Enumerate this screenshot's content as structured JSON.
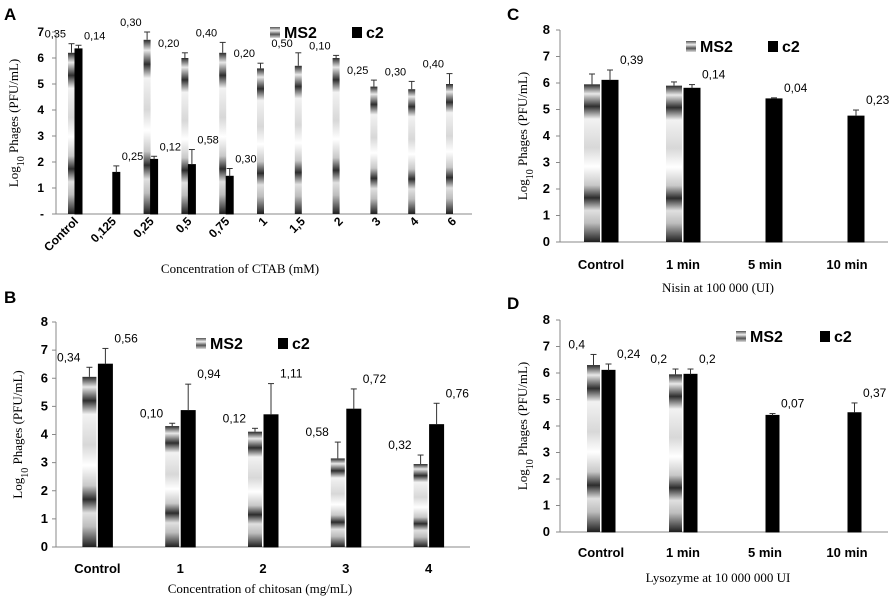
{
  "chart_data": [
    {
      "panel": "A",
      "type": "bar",
      "xlabel": "Concentration of CTAB (mM)",
      "ylabel": "Log10 Phages (PFU/mL)",
      "ylim": [
        0,
        7
      ],
      "yticks": [
        "-",
        "1",
        "2",
        "3",
        "4",
        "5",
        "6",
        "7"
      ],
      "categories": [
        "Control",
        "0,125",
        "0,25",
        "0,5",
        "0,75",
        "1",
        "1,5",
        "2",
        "3",
        "4",
        "6"
      ],
      "series": [
        {
          "name": "MS2",
          "values": [
            6.2,
            null,
            6.7,
            6.0,
            6.2,
            5.6,
            5.7,
            6.0,
            4.9,
            4.8,
            5.0
          ],
          "errors": [
            0.35,
            null,
            0.3,
            0.2,
            0.4,
            0.2,
            0.5,
            0.1,
            0.25,
            0.3,
            0.4
          ],
          "labels": [
            "0,35",
            null,
            "0,30",
            "0,20",
            "0,40",
            "0,20",
            "0,50",
            "0,10",
            "0,25",
            "0,30",
            "0,40"
          ]
        },
        {
          "name": "c2",
          "values": [
            6.35,
            1.6,
            2.1,
            1.9,
            1.45,
            null,
            null,
            null,
            null,
            null,
            null
          ],
          "errors": [
            0.14,
            0.25,
            0.12,
            0.58,
            0.3,
            null,
            null,
            null,
            null,
            null,
            null
          ],
          "labels": [
            "0,14",
            "0,25",
            "0,12",
            "0,58",
            "0,30",
            null,
            null,
            null,
            null,
            null,
            null
          ]
        }
      ]
    },
    {
      "panel": "B",
      "type": "bar",
      "xlabel": "Concentration of chitosan (mg/mL)",
      "ylabel": "Log10 Phages (PFU/mL)",
      "ylim": [
        0,
        8
      ],
      "yticks": [
        "0",
        "1",
        "2",
        "3",
        "4",
        "5",
        "6",
        "7",
        "8"
      ],
      "categories": [
        "Control",
        "1",
        "2",
        "3",
        "4"
      ],
      "series": [
        {
          "name": "MS2",
          "values": [
            6.05,
            4.3,
            4.1,
            3.15,
            2.95
          ],
          "errors": [
            0.34,
            0.1,
            0.12,
            0.58,
            0.32
          ],
          "labels": [
            "0,34",
            "0,10",
            "0,12",
            "0,58",
            "0,32"
          ]
        },
        {
          "name": "c2",
          "values": [
            6.5,
            4.85,
            4.7,
            4.9,
            4.35
          ],
          "errors": [
            0.56,
            0.94,
            1.11,
            0.72,
            0.76
          ],
          "labels": [
            "0,56",
            "0,94",
            "1,11",
            "0,72",
            "0,76"
          ]
        }
      ]
    },
    {
      "panel": "C",
      "type": "bar",
      "xlabel": "Nisin at 100 000 (UI)",
      "ylabel": "Log10 Phages (PFU/mL)",
      "ylim": [
        0,
        8
      ],
      "yticks": [
        "0",
        "1",
        "2",
        "3",
        "4",
        "5",
        "6",
        "7",
        "8"
      ],
      "categories": [
        "Control",
        "1 min",
        "5 min",
        "10 min"
      ],
      "series": [
        {
          "name": "MS2",
          "values": [
            5.95,
            5.9,
            null,
            null
          ],
          "errors": [
            0.39,
            0.14,
            null,
            null
          ],
          "labels": [
            null,
            null,
            null,
            null
          ]
        },
        {
          "name": "c2",
          "values": [
            6.1,
            5.8,
            5.4,
            4.75
          ],
          "errors": [
            0.39,
            0.14,
            0.04,
            0.23
          ],
          "labels": [
            "0,39",
            "0,14",
            "0,04",
            "0,23"
          ]
        }
      ]
    },
    {
      "panel": "D",
      "type": "bar",
      "xlabel": "Lysozyme at 10 000 000 UI",
      "ylabel": "Log10 Phages (PFU/mL)",
      "ylim": [
        0,
        8
      ],
      "yticks": [
        "0",
        "1",
        "2",
        "3",
        "4",
        "5",
        "6",
        "7",
        "8"
      ],
      "categories": [
        "Control",
        "1 min",
        "5 min",
        "10 min"
      ],
      "series": [
        {
          "name": "MS2",
          "values": [
            6.3,
            5.95,
            null,
            null
          ],
          "errors": [
            0.4,
            0.2,
            null,
            null
          ],
          "labels": [
            "0,4",
            "0,2",
            null,
            null
          ]
        },
        {
          "name": "c2",
          "values": [
            6.1,
            5.95,
            4.4,
            4.5
          ],
          "errors": [
            0.24,
            0.2,
            0.07,
            0.37
          ],
          "labels": [
            "0,24",
            "0,2",
            "0,07",
            "0,37"
          ]
        }
      ]
    }
  ]
}
